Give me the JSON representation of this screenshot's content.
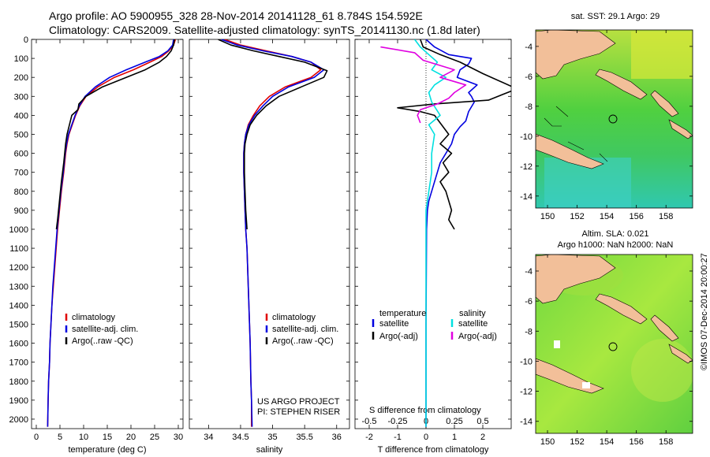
{
  "header": {
    "line1": "Argo profile: AO 5900955_328 28-Nov-2014 20141128_61 8.784S 154.592E",
    "line2": "Climatology: CARS2009. Satellite-adjusted climatology: synTS_20141130.nc (1.8d later)"
  },
  "maps": {
    "sst_title": "sat. SST: 29.1 Argo: 29",
    "sla_title1": "Altim. SLA: 0.021",
    "sla_title2": "Argo h1000: NaN h2000: NaN",
    "lat_ticks": [
      "-4",
      "-6",
      "-8",
      "-10",
      "-12",
      "-14"
    ],
    "lon_ticks": [
      "150",
      "152",
      "154",
      "156",
      "158"
    ],
    "argo_position": {
      "lon": 154.592,
      "lat": -8.784
    },
    "credit": "©IMOS 07-Dec-2014 20:00:27"
  },
  "annotations": {
    "project": "US ARGO PROJECT",
    "pi": "PI: STEPHEN RISER"
  },
  "legends": {
    "panel": {
      "climatology": "climatology",
      "satellite": "satellite-adj. clim.",
      "argo": "Argo(..raw -QC)"
    },
    "diff": {
      "temp_head": "temperature",
      "sal_head": "salinity",
      "t_sat": "satellite",
      "t_argo": "Argo(-adj)",
      "s_sat": "satellite",
      "s_argo": "Argo(-adj)"
    }
  },
  "colors": {
    "climatology": "#e00000",
    "satellite": "#0000e0",
    "argo": "#000000",
    "sal_sat": "#00e0e0",
    "sal_argo": "#e000e0",
    "land": "#f2bf99"
  },
  "chart_data": [
    {
      "type": "line",
      "xlabel": "temperature (deg C)",
      "ylabel": "",
      "xlim": [
        -1,
        31
      ],
      "ylim": [
        2050,
        0
      ],
      "xticks": [
        0,
        5,
        10,
        15,
        20,
        25,
        30
      ],
      "yticks": [
        0,
        100,
        200,
        300,
        400,
        500,
        600,
        700,
        800,
        900,
        1000,
        1100,
        1200,
        1300,
        1400,
        1500,
        1600,
        1700,
        1800,
        1900,
        2000
      ],
      "series": [
        {
          "name": "climatology",
          "color": "#e00000",
          "x": [
            29.4,
            29.0,
            28.0,
            26.5,
            24.0,
            20.5,
            16.5,
            13.0,
            10.5,
            9.2,
            8.3,
            7.6,
            6.9,
            6.5,
            6.2,
            5.8,
            5.3,
            4.9,
            4.5,
            4.2,
            3.9,
            3.6,
            3.3,
            3.1,
            2.9,
            2.8,
            2.6,
            2.5,
            2.4
          ],
          "y": [
            0,
            30,
            60,
            90,
            120,
            160,
            200,
            250,
            300,
            350,
            400,
            450,
            500,
            550,
            600,
            700,
            800,
            900,
            1000,
            1100,
            1200,
            1300,
            1400,
            1500,
            1600,
            1700,
            1800,
            1900,
            2040
          ]
        },
        {
          "name": "satellite-adj. clim.",
          "color": "#0000e0",
          "x": [
            29.0,
            28.8,
            27.8,
            26.0,
            23.0,
            19.0,
            15.5,
            12.5,
            10.3,
            9.1,
            8.2,
            7.5,
            6.8,
            6.4,
            6.1,
            5.7,
            5.2,
            4.8,
            4.4,
            4.1,
            3.8,
            3.5,
            3.3,
            3.1,
            2.9,
            2.8,
            2.6,
            2.5,
            2.4
          ],
          "y": [
            0,
            30,
            60,
            90,
            120,
            160,
            200,
            250,
            300,
            350,
            400,
            450,
            500,
            550,
            600,
            700,
            800,
            900,
            1000,
            1100,
            1200,
            1300,
            1400,
            1500,
            1600,
            1700,
            1800,
            1900,
            2040
          ]
        },
        {
          "name": "Argo(..raw -QC)",
          "color": "#000000",
          "x": [
            29.2,
            29.0,
            28.5,
            27.5,
            26.0,
            23.0,
            19.0,
            14.0,
            10.5,
            9.0,
            8.8,
            7.5,
            7.0,
            6.5,
            6.2,
            5.8,
            5.3,
            4.9,
            4.5,
            4.25
          ],
          "y": [
            0,
            30,
            60,
            90,
            120,
            160,
            200,
            250,
            300,
            340,
            370,
            400,
            450,
            500,
            550,
            650,
            750,
            850,
            950,
            1000
          ]
        }
      ]
    },
    {
      "type": "line",
      "xlabel": "salinity",
      "ylabel": "",
      "xlim": [
        33.7,
        36.2
      ],
      "ylim": [
        2050,
        0
      ],
      "xticks": [
        34,
        34.5,
        35,
        35.5,
        36
      ],
      "series": [
        {
          "name": "climatology",
          "color": "#e00000",
          "x": [
            34.25,
            34.5,
            34.9,
            35.3,
            35.6,
            35.75,
            35.6,
            35.2,
            34.95,
            34.8,
            34.7,
            34.62,
            34.58,
            34.56,
            34.55,
            34.55,
            34.56,
            34.57,
            34.58,
            34.6,
            34.61,
            34.63,
            34.64,
            34.65,
            34.66,
            34.67,
            34.67
          ],
          "y": [
            0,
            30,
            60,
            90,
            120,
            160,
            200,
            250,
            300,
            350,
            400,
            450,
            500,
            550,
            600,
            700,
            800,
            900,
            1000,
            1100,
            1200,
            1400,
            1500,
            1600,
            1800,
            1900,
            2040
          ]
        },
        {
          "name": "satellite-adj. clim.",
          "color": "#0000e0",
          "x": [
            34.2,
            34.45,
            34.85,
            35.3,
            35.6,
            35.8,
            35.65,
            35.25,
            35.0,
            34.85,
            34.72,
            34.63,
            34.58,
            34.56,
            34.55,
            34.55,
            34.56,
            34.57,
            34.58,
            34.6,
            34.61,
            34.63,
            34.64,
            34.65,
            34.66,
            34.67,
            34.68
          ],
          "y": [
            0,
            30,
            60,
            90,
            120,
            160,
            200,
            250,
            300,
            350,
            400,
            450,
            500,
            550,
            600,
            700,
            800,
            900,
            1000,
            1100,
            1200,
            1400,
            1500,
            1600,
            1800,
            1900,
            2040
          ]
        },
        {
          "name": "Argo(..raw -QC)",
          "color": "#000000",
          "x": [
            34.15,
            34.35,
            34.7,
            35.1,
            35.5,
            35.85,
            35.8,
            35.45,
            35.1,
            34.9,
            34.75,
            34.65,
            34.6,
            34.57,
            34.56,
            34.56,
            34.57,
            34.58,
            34.59,
            34.6
          ],
          "y": [
            0,
            30,
            60,
            90,
            120,
            165,
            200,
            250,
            300,
            350,
            400,
            450,
            500,
            550,
            600,
            700,
            800,
            900,
            950,
            1000
          ]
        }
      ]
    },
    {
      "type": "line",
      "xlabel": "T difference from climatology",
      "ylabel": "",
      "xlim": [
        -2.5,
        3.0
      ],
      "ylim": [
        2050,
        0
      ],
      "xticks": [
        -2,
        -1,
        0,
        1,
        2
      ],
      "s_axis_label": "S difference from climatology",
      "s_ticks": [
        "-0.5",
        "-0.25",
        "0",
        "0.25",
        "0.5"
      ],
      "series": [
        {
          "name": "temperature satellite",
          "color": "#0000e0",
          "x": [
            0.0,
            0.3,
            0.8,
            1.6,
            1.5,
            1.2,
            1.1,
            1.8,
            1.5,
            1.6,
            1.7,
            1.5,
            1.4,
            1.2,
            1.0,
            0.9,
            0.7,
            0.5,
            0.4,
            0.3,
            0.2,
            0.1,
            0.05,
            0.02,
            0.0,
            0.0
          ],
          "y": [
            0,
            40,
            80,
            100,
            130,
            160,
            200,
            240,
            280,
            300,
            330,
            380,
            430,
            460,
            500,
            550,
            600,
            650,
            700,
            750,
            800,
            850,
            900,
            1000,
            1500,
            2040
          ]
        },
        {
          "name": "temperature Argo(-adj)",
          "color": "#000000",
          "x": [
            -0.2,
            -0.1,
            0.5,
            1.2,
            2.0,
            3.2,
            2.2,
            0.3,
            -1.0,
            -0.2,
            0.3,
            0.8,
            0.5,
            0.9,
            0.6,
            0.8,
            0.5,
            0.7,
            0.9,
            0.8,
            1.0
          ],
          "y": [
            0,
            40,
            80,
            120,
            180,
            260,
            320,
            340,
            360,
            380,
            400,
            500,
            550,
            600,
            650,
            700,
            750,
            800,
            900,
            950,
            1000
          ]
        },
        {
          "name": "salinity satellite",
          "color": "#00e0e0",
          "x": [
            -0.4,
            -0.2,
            0.1,
            0.4,
            0.2,
            0.7,
            0.3,
            0.1,
            0.2,
            0.5,
            0.1,
            0.3,
            0.2,
            0.2,
            0.1,
            0.0,
            0.0,
            0.0
          ],
          "y": [
            0,
            40,
            80,
            120,
            160,
            200,
            240,
            280,
            330,
            400,
            450,
            500,
            600,
            700,
            800,
            900,
            1500,
            2040
          ]
        },
        {
          "name": "salinity Argo(-adj)",
          "color": "#e000e0",
          "x": [
            -1.6,
            -0.4,
            -0.1,
            1.0,
            0.5,
            1.4,
            1.0,
            0.8,
            0.4,
            -0.2,
            -0.3,
            -0.2
          ],
          "y": [
            40,
            70,
            110,
            160,
            200,
            240,
            280,
            310,
            340,
            370,
            400,
            440
          ]
        }
      ]
    }
  ]
}
